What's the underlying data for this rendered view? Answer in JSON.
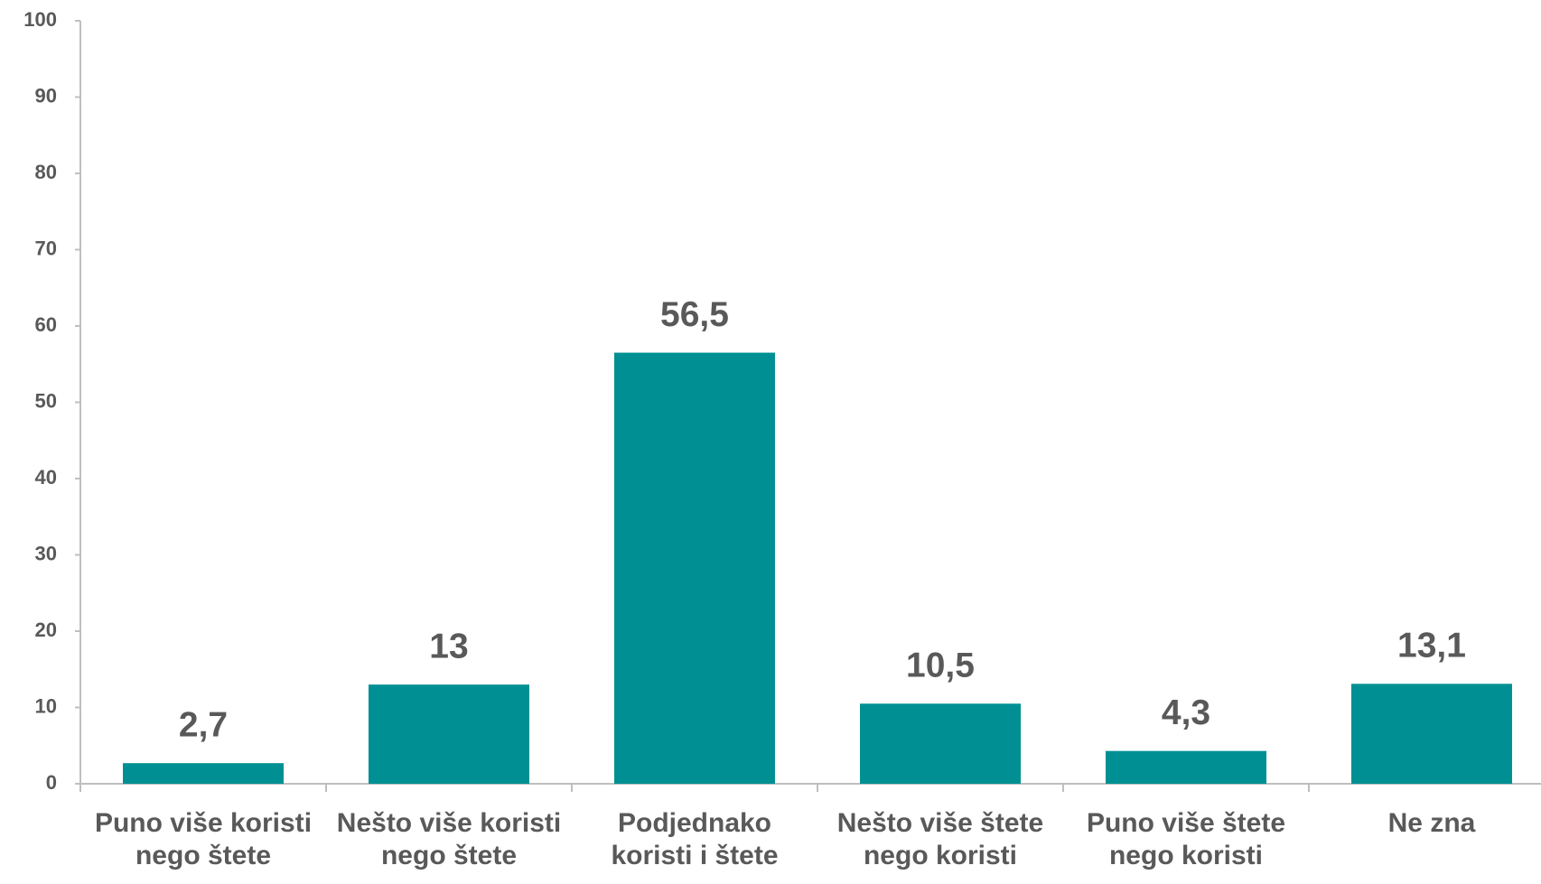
{
  "chart_data": {
    "type": "bar",
    "categories": [
      "Puno više koristi nego štete",
      "Nešto više koristi nego štete",
      "Podjednako koristi i štete",
      "Nešto više štete nego koristi",
      "Puno više štete nego koristi",
      "Ne zna"
    ],
    "values": [
      2.7,
      13,
      56.5,
      10.5,
      4.3,
      13.1
    ],
    "value_labels": [
      "2,7",
      "13",
      "56,5",
      "10,5",
      "4,3",
      "13,1"
    ],
    "color": "#009093",
    "ylim": [
      0,
      100
    ],
    "yticks": [
      0,
      10,
      20,
      30,
      40,
      50,
      60,
      70,
      80,
      90,
      100
    ],
    "grid": false
  }
}
